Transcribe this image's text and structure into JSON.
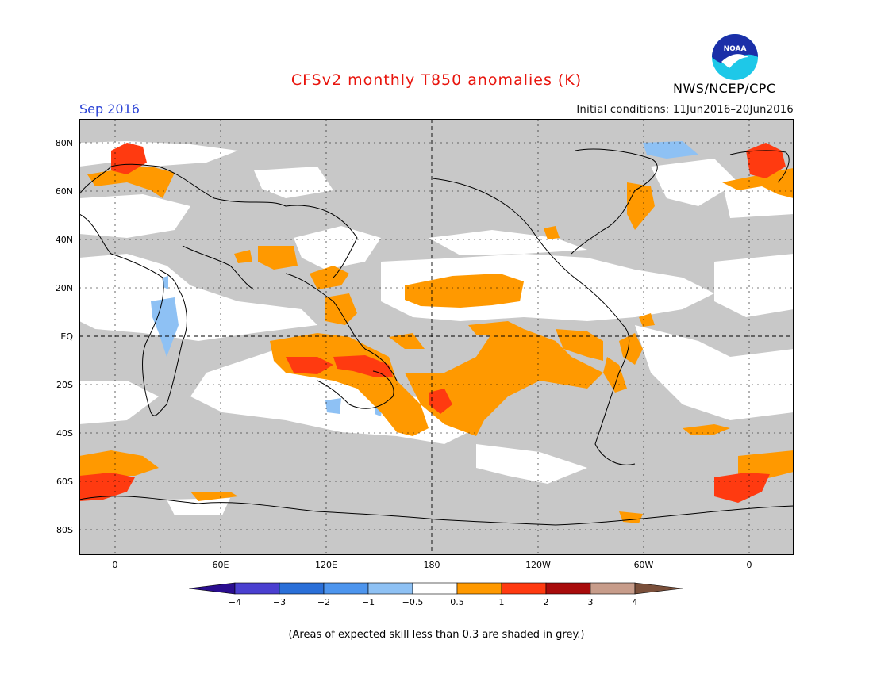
{
  "title": "CFSv2 monthly T850 anomalies (K)",
  "month": "Sep 2016",
  "agency": "NWS/NCEP/CPC",
  "logo_text": "NOAA",
  "initial_conditions": "Initial conditions: 11Jun2016–20Jun2016",
  "lat_labels": [
    "80N",
    "60N",
    "40N",
    "20N",
    "EQ",
    "20S",
    "40S",
    "60S",
    "80S"
  ],
  "lon_labels": [
    "0",
    "60E",
    "120E",
    "180",
    "120W",
    "60W",
    "0"
  ],
  "colorbar": {
    "labels": [
      "−4",
      "−3",
      "−2",
      "−1",
      "−0.5",
      "0.5",
      "1",
      "2",
      "3",
      "4"
    ],
    "colors": [
      "#2a0d8f",
      "#4a3fd0",
      "#2a6fd8",
      "#4d95ee",
      "#8ec1f4",
      "#ffffff",
      "#ff9900",
      "#ff3a10",
      "#a80b0b",
      "#c79c8a",
      "#7a4f3a"
    ]
  },
  "note": "(Areas of expected skill less than 0.3 are shaded in grey.)",
  "colors": {
    "skill_grey": "#c8c8c8",
    "anom_05_1": "#ff9900",
    "anom_1_2": "#ff3a10",
    "anom_neg_05_1": "#8ec1f4"
  }
}
